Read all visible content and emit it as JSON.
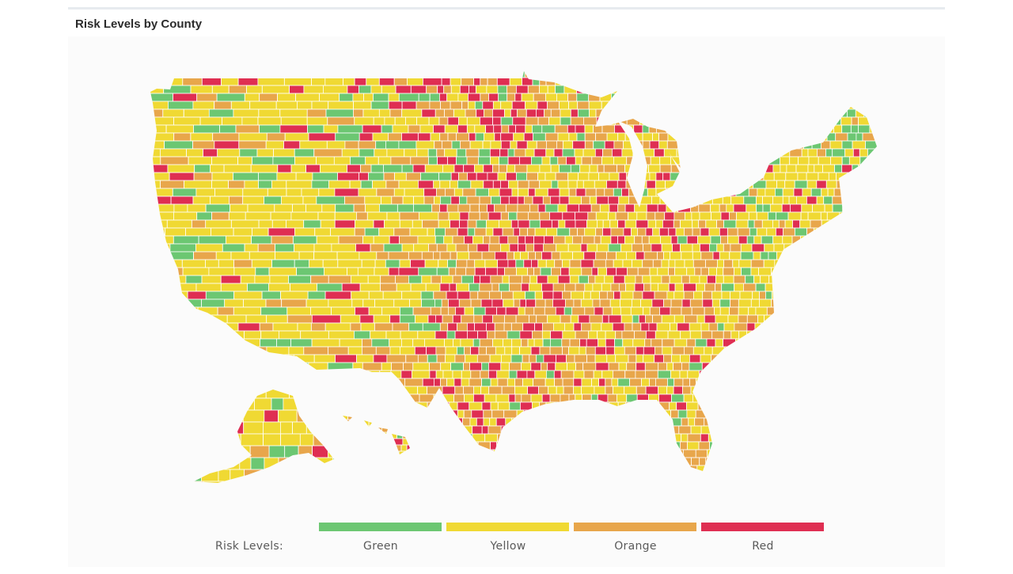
{
  "panel": {
    "title": "Risk Levels by County"
  },
  "legend": {
    "label": "Risk Levels:",
    "items": [
      {
        "label": "Green",
        "color": "#6cc772"
      },
      {
        "label": "Yellow",
        "color": "#f0d933"
      },
      {
        "label": "Orange",
        "color": "#e8a64b"
      },
      {
        "label": "Red",
        "color": "#df2e52"
      }
    ]
  },
  "map": {
    "type": "choropleth",
    "geography": "United States counties",
    "colors": {
      "border": "#ffffff",
      "green": "#6cc772",
      "yellow": "#f0d933",
      "orange": "#e8a64b",
      "red": "#df2e52"
    }
  }
}
